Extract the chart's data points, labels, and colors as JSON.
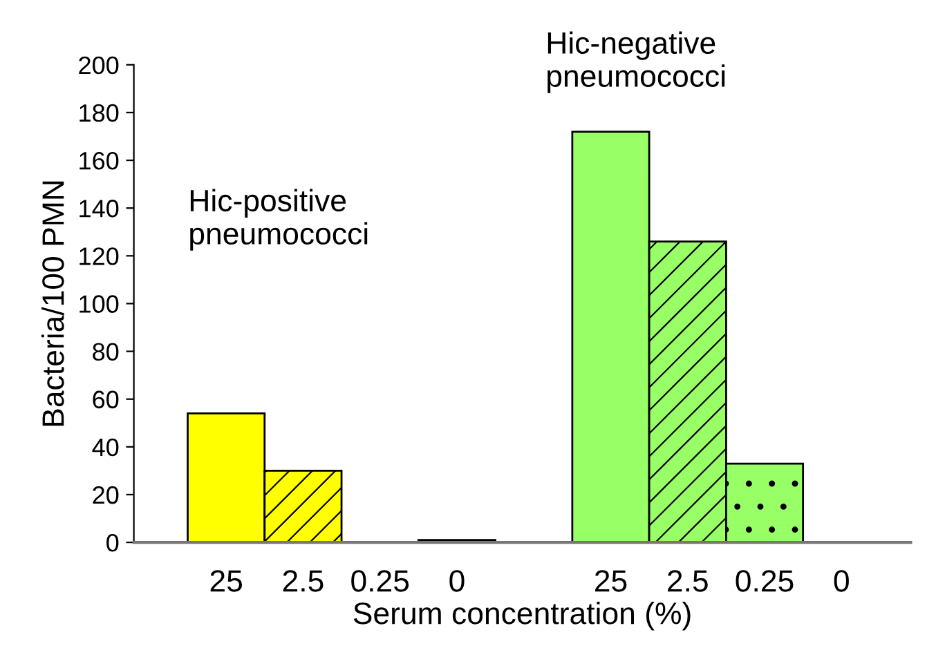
{
  "chart_data": {
    "type": "bar",
    "xlabel": "Serum concentration (%)",
    "ylabel": "Bacteria/100 PMN",
    "categories": [
      "25",
      "2.5",
      "0.25",
      "0",
      null,
      "25",
      "2.5",
      "0.25",
      "0"
    ],
    "values": [
      54,
      30,
      0,
      1,
      null,
      172,
      126,
      33,
      0
    ],
    "colors": [
      "#ffff00",
      "#ffff00",
      "#ffff00",
      "#ffff00",
      "#ffffff",
      "#99ff66",
      "#99ff66",
      "#99ff66",
      "#99ff66"
    ],
    "ylim": [
      0,
      200
    ],
    "yticks": [
      0,
      20,
      40,
      60,
      80,
      100,
      120,
      140,
      160,
      180,
      200
    ],
    "grid": false,
    "legend": false,
    "annotations": [
      "Hic-positive\npneumococci",
      "Hic-negative\npneumococci"
    ]
  }
}
